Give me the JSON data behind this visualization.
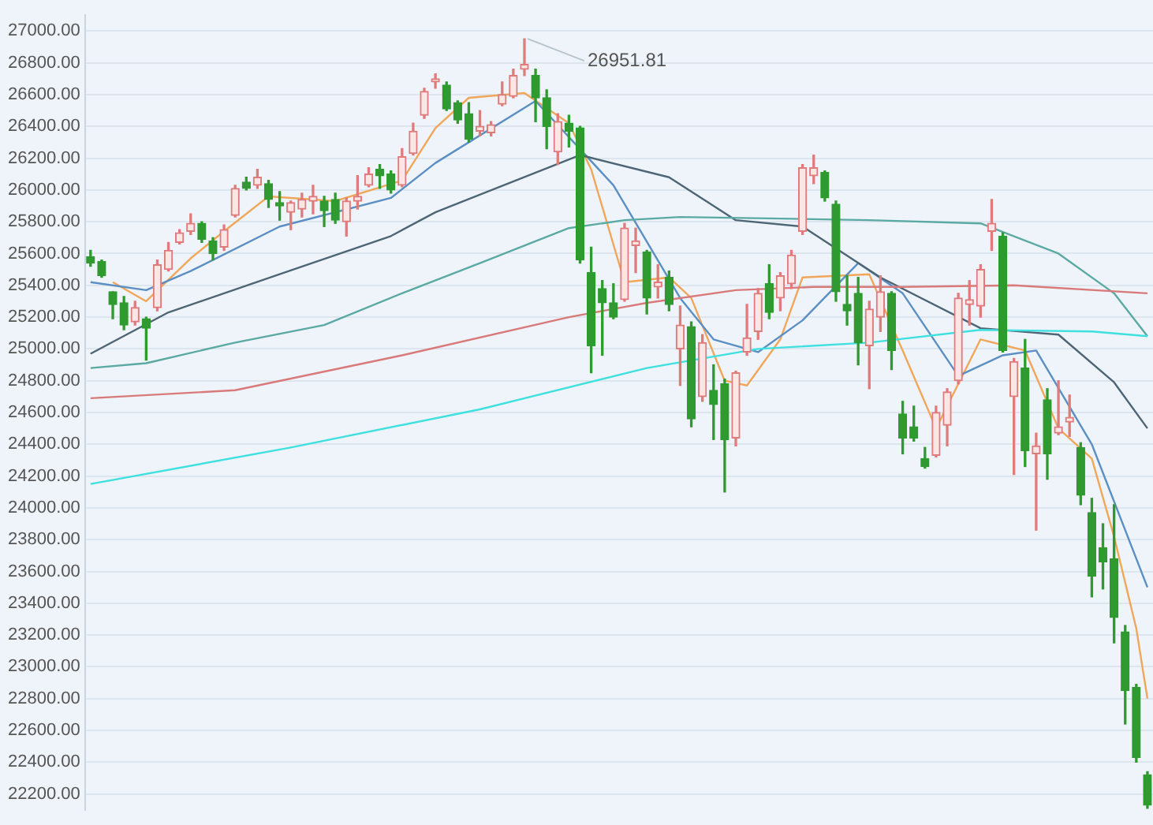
{
  "chart_data": {
    "type": "candlestick",
    "categories": [
      null,
      null,
      null,
      null,
      null,
      null,
      null,
      null,
      null,
      null,
      null,
      null,
      null,
      null,
      null,
      null,
      null,
      null,
      null,
      null,
      null,
      null,
      null,
      null,
      null,
      null,
      null,
      null,
      null,
      null,
      null,
      null,
      null,
      null,
      null,
      null,
      null,
      null,
      null,
      null,
      null,
      null,
      null,
      null,
      null,
      null,
      null,
      null,
      null,
      null,
      null,
      null,
      null,
      null,
      null,
      null,
      null,
      null,
      null,
      null,
      null,
      null,
      null,
      null,
      null,
      null,
      null,
      null,
      null,
      null,
      null,
      null,
      null,
      null,
      null,
      null,
      null,
      null,
      null,
      null,
      null,
      null,
      null,
      null,
      null,
      null,
      null,
      null,
      null,
      null,
      null,
      null,
      null,
      null,
      null,
      null
    ],
    "ohlc": [
      [
        25580,
        25620,
        25520,
        25540
      ],
      [
        25550,
        25560,
        25450,
        25460
      ],
      [
        25360,
        25360,
        25190,
        25280
      ],
      [
        25290,
        25330,
        25120,
        25150
      ],
      [
        25170,
        25300,
        25150,
        25260
      ],
      [
        25190,
        25200,
        24930,
        25130
      ],
      [
        25260,
        25560,
        25240,
        25530
      ],
      [
        25500,
        25670,
        25490,
        25620
      ],
      [
        25670,
        25750,
        25660,
        25730
      ],
      [
        25740,
        25850,
        25720,
        25790
      ],
      [
        25790,
        25800,
        25670,
        25690
      ],
      [
        25680,
        25700,
        25560,
        25600
      ],
      [
        25640,
        25780,
        25620,
        25750
      ],
      [
        25840,
        26030,
        25830,
        26010
      ],
      [
        26050,
        26080,
        26000,
        26010
      ],
      [
        26030,
        26130,
        26010,
        26080
      ],
      [
        26040,
        26060,
        25890,
        25940
      ],
      [
        25920,
        25990,
        25810,
        25900
      ],
      [
        25860,
        25930,
        25750,
        25920
      ],
      [
        25880,
        25980,
        25830,
        25940
      ],
      [
        25930,
        26030,
        25850,
        25960
      ],
      [
        25930,
        25960,
        25770,
        25870
      ],
      [
        25940,
        25980,
        25790,
        25810
      ],
      [
        25800,
        25950,
        25710,
        25930
      ],
      [
        25930,
        26090,
        25880,
        25960
      ],
      [
        26030,
        26140,
        26020,
        26100
      ],
      [
        26130,
        26160,
        26010,
        26090
      ],
      [
        26100,
        26120,
        25980,
        26000
      ],
      [
        26030,
        26260,
        26020,
        26210
      ],
      [
        26230,
        26420,
        26220,
        26370
      ],
      [
        26470,
        26640,
        26450,
        26620
      ],
      [
        26680,
        26730,
        26640,
        26700
      ],
      [
        26660,
        26680,
        26500,
        26510
      ],
      [
        26550,
        26560,
        26420,
        26440
      ],
      [
        26480,
        26550,
        26300,
        26320
      ],
      [
        26370,
        26500,
        26340,
        26400
      ],
      [
        26360,
        26430,
        26340,
        26410
      ],
      [
        26540,
        26680,
        26530,
        26600
      ],
      [
        26590,
        26760,
        26580,
        26720
      ],
      [
        26760,
        26951.81,
        26720,
        26790
      ],
      [
        26720,
        26760,
        26430,
        26580
      ],
      [
        26580,
        26630,
        26260,
        26400
      ],
      [
        26240,
        26480,
        26160,
        26430
      ],
      [
        26420,
        26470,
        26270,
        26370
      ],
      [
        26390,
        26400,
        25540,
        25560
      ],
      [
        25480,
        25640,
        24850,
        25020
      ],
      [
        25380,
        25430,
        24960,
        25290
      ],
      [
        25290,
        25410,
        25190,
        25200
      ],
      [
        25310,
        25790,
        25300,
        25760
      ],
      [
        25650,
        25760,
        25480,
        25680
      ],
      [
        25610,
        25620,
        25220,
        25320
      ],
      [
        25390,
        25530,
        25320,
        25420
      ],
      [
        25450,
        25490,
        25240,
        25280
      ],
      [
        25000,
        25270,
        24770,
        25150
      ],
      [
        25140,
        25170,
        24510,
        24560
      ],
      [
        24700,
        25090,
        24670,
        25040
      ],
      [
        24740,
        24900,
        24430,
        24650
      ],
      [
        24780,
        24810,
        24100,
        24430
      ],
      [
        24440,
        24860,
        24390,
        24850
      ],
      [
        24980,
        25280,
        24960,
        25070
      ],
      [
        25110,
        25380,
        25060,
        25350
      ],
      [
        25410,
        25530,
        25190,
        25230
      ],
      [
        25320,
        25480,
        25240,
        25460
      ],
      [
        25410,
        25620,
        25380,
        25590
      ],
      [
        25740,
        26160,
        25720,
        26140
      ],
      [
        26090,
        26220,
        26040,
        26140
      ],
      [
        26110,
        26120,
        25930,
        25950
      ],
      [
        25910,
        25930,
        25300,
        25360
      ],
      [
        25280,
        25460,
        25150,
        25240
      ],
      [
        25350,
        25450,
        24900,
        25040
      ],
      [
        25020,
        25300,
        24750,
        25250
      ],
      [
        25200,
        25460,
        25110,
        25360
      ],
      [
        25350,
        25360,
        24870,
        24990
      ],
      [
        24590,
        24670,
        24340,
        24440
      ],
      [
        24510,
        24640,
        24420,
        24440
      ],
      [
        24310,
        24380,
        24250,
        24260
      ],
      [
        24330,
        24640,
        24320,
        24600
      ],
      [
        24520,
        24750,
        24390,
        24730
      ],
      [
        24800,
        25350,
        24780,
        25320
      ],
      [
        25280,
        25430,
        25150,
        25310
      ],
      [
        25270,
        25530,
        25200,
        25500
      ],
      [
        25740,
        25940,
        25620,
        25790
      ],
      [
        25710,
        25730,
        24980,
        24990
      ],
      [
        24700,
        24940,
        24210,
        24920
      ],
      [
        24880,
        25060,
        24260,
        24360
      ],
      [
        24340,
        24470,
        23860,
        24390
      ],
      [
        24680,
        24750,
        24180,
        24340
      ],
      [
        24470,
        24800,
        24460,
        24510
      ],
      [
        24540,
        24710,
        24450,
        24570
      ],
      [
        24380,
        24410,
        24020,
        24080
      ],
      [
        23970,
        24060,
        23440,
        23570
      ],
      [
        23750,
        23900,
        23490,
        23660
      ],
      [
        23680,
        24020,
        23150,
        23310
      ],
      [
        23220,
        23260,
        22640,
        22850
      ],
      [
        22870,
        22890,
        22400,
        22430
      ],
      [
        22320,
        22340,
        22110,
        22130
      ]
    ],
    "series": [
      {
        "type": "line",
        "color": "#3fe0e0",
        "values": [
          24150,
          null,
          null,
          null,
          null,
          null,
          null,
          null,
          null,
          null,
          null,
          null,
          null,
          null,
          null,
          null,
          null,
          null,
          24380,
          null,
          null,
          null,
          null,
          null,
          null,
          null,
          null,
          null,
          null,
          null,
          null,
          null,
          null,
          null,
          null,
          24620,
          null,
          null,
          null,
          null,
          null,
          null,
          null,
          null,
          null,
          null,
          null,
          null,
          null,
          null,
          24880,
          null,
          null,
          null,
          null,
          null,
          null,
          null,
          null,
          null,
          25000,
          null,
          null,
          null,
          null,
          null,
          null,
          null,
          null,
          null,
          25040,
          null,
          null,
          null,
          null,
          null,
          null,
          null,
          null,
          null,
          25120,
          null,
          null,
          null,
          null,
          null,
          null,
          null,
          null,
          null,
          25110,
          null,
          null,
          null,
          null,
          25080
        ]
      },
      {
        "type": "line",
        "color": "#d97a7a",
        "values": [
          24690,
          null,
          null,
          null,
          null,
          null,
          null,
          null,
          null,
          null,
          null,
          null,
          null,
          24740,
          null,
          null,
          null,
          null,
          null,
          null,
          null,
          null,
          null,
          null,
          null,
          null,
          null,
          null,
          24960,
          null,
          null,
          null,
          null,
          null,
          null,
          null,
          null,
          null,
          null,
          null,
          null,
          null,
          null,
          25200,
          null,
          null,
          null,
          null,
          null,
          null,
          25290,
          null,
          null,
          null,
          null,
          null,
          null,
          null,
          25370,
          null,
          null,
          null,
          null,
          null,
          null,
          25390,
          null,
          null,
          null,
          null,
          null,
          null,
          null,
          25390,
          null,
          null,
          null,
          null,
          null,
          null,
          null,
          null,
          null,
          25400,
          null,
          null,
          null,
          null,
          null,
          null,
          null,
          null,
          null,
          null,
          null,
          25350
        ]
      },
      {
        "type": "line",
        "color": "#5aa9a2",
        "values": [
          24880,
          null,
          null,
          null,
          null,
          24910,
          null,
          null,
          null,
          null,
          null,
          null,
          null,
          25040,
          null,
          null,
          null,
          null,
          null,
          null,
          null,
          25150,
          null,
          null,
          null,
          null,
          null,
          null,
          25350,
          null,
          null,
          null,
          null,
          null,
          null,
          25540,
          null,
          null,
          null,
          null,
          null,
          null,
          null,
          25760,
          null,
          null,
          null,
          null,
          25810,
          null,
          null,
          null,
          null,
          25830,
          null,
          null,
          null,
          null,
          null,
          null,
          null,
          null,
          25820,
          null,
          null,
          null,
          null,
          null,
          null,
          null,
          25810,
          null,
          null,
          null,
          null,
          null,
          null,
          null,
          null,
          null,
          25790,
          null,
          null,
          null,
          null,
          null,
          null,
          25600,
          null,
          null,
          null,
          null,
          25350,
          null,
          null,
          25080
        ]
      },
      {
        "type": "line",
        "color": "#4d6574",
        "values": [
          24970,
          null,
          null,
          null,
          null,
          null,
          null,
          25230,
          null,
          null,
          null,
          null,
          null,
          null,
          null,
          null,
          null,
          25470,
          null,
          null,
          null,
          null,
          null,
          null,
          null,
          null,
          null,
          25710,
          null,
          null,
          null,
          25860,
          null,
          null,
          null,
          null,
          null,
          null,
          null,
          null,
          null,
          null,
          null,
          null,
          26220,
          null,
          null,
          null,
          null,
          null,
          null,
          null,
          26080,
          null,
          null,
          null,
          null,
          null,
          25810,
          null,
          null,
          null,
          null,
          null,
          25770,
          null,
          null,
          null,
          null,
          null,
          null,
          25450,
          null,
          null,
          null,
          null,
          null,
          null,
          null,
          null,
          25130,
          null,
          null,
          null,
          null,
          null,
          null,
          25090,
          null,
          null,
          null,
          null,
          24790,
          null,
          null,
          24500
        ]
      },
      {
        "type": "line",
        "color": "#5b8fc4",
        "values": [
          25420,
          null,
          null,
          null,
          null,
          25370,
          null,
          null,
          null,
          25490,
          null,
          null,
          null,
          null,
          null,
          null,
          null,
          25770,
          null,
          null,
          null,
          null,
          null,
          null,
          null,
          null,
          null,
          25950,
          null,
          null,
          null,
          26170,
          null,
          null,
          null,
          null,
          null,
          null,
          null,
          null,
          26560,
          null,
          null,
          null,
          null,
          null,
          null,
          26030,
          null,
          null,
          null,
          null,
          null,
          25320,
          null,
          null,
          25060,
          null,
          null,
          null,
          24980,
          null,
          null,
          null,
          25180,
          null,
          null,
          null,
          null,
          25540,
          null,
          null,
          null,
          25350,
          null,
          null,
          null,
          null,
          24830,
          null,
          null,
          null,
          24960,
          null,
          null,
          24990,
          null,
          null,
          null,
          null,
          24400,
          null,
          null,
          null,
          null,
          23500
        ]
      },
      {
        "type": "line",
        "color": "#f0a75a",
        "values": [
          null,
          null,
          25420,
          null,
          null,
          25300,
          null,
          null,
          null,
          25570,
          null,
          null,
          25740,
          null,
          null,
          null,
          25960,
          null,
          null,
          null,
          null,
          null,
          25930,
          null,
          null,
          null,
          null,
          null,
          26060,
          null,
          null,
          26390,
          null,
          null,
          26580,
          null,
          null,
          null,
          null,
          26610,
          null,
          null,
          null,
          26420,
          null,
          26130,
          null,
          null,
          25420,
          null,
          null,
          null,
          25450,
          null,
          25320,
          null,
          null,
          24800,
          null,
          24770,
          null,
          null,
          25060,
          null,
          25450,
          null,
          null,
          null,
          null,
          null,
          25470,
          null,
          null,
          24990,
          null,
          null,
          24500,
          null,
          null,
          null,
          25060,
          null,
          null,
          null,
          24990,
          null,
          null,
          24500,
          null,
          null,
          24310,
          null,
          23820,
          null,
          23240,
          22800
        ]
      }
    ],
    "ylim": [
      22100,
      27100
    ],
    "yticks": [
      {
        "value": 22200,
        "label": "22200.00"
      },
      {
        "value": 22400,
        "label": "22400.00"
      },
      {
        "value": 22600,
        "label": "22600.00"
      },
      {
        "value": 22800,
        "label": "22800.00"
      },
      {
        "value": 23000,
        "label": "23000.00"
      },
      {
        "value": 23200,
        "label": "23200.00"
      },
      {
        "value": 23400,
        "label": "23400.00"
      },
      {
        "value": 23600,
        "label": "23600.00"
      },
      {
        "value": 23800,
        "label": "23800.00"
      },
      {
        "value": 24000,
        "label": "24000.00"
      },
      {
        "value": 24200,
        "label": "24200.00"
      },
      {
        "value": 24400,
        "label": "24400.00"
      },
      {
        "value": 24600,
        "label": "24600.00"
      },
      {
        "value": 24800,
        "label": "24800.00"
      },
      {
        "value": 25000,
        "label": "25000.00"
      },
      {
        "value": 25200,
        "label": "25200.00"
      },
      {
        "value": 25400,
        "label": "25400.00"
      },
      {
        "value": 25600,
        "label": "25600.00"
      },
      {
        "value": 25800,
        "label": "25800.00"
      },
      {
        "value": 26000,
        "label": "26000.00"
      },
      {
        "value": 26200,
        "label": "26200.00"
      },
      {
        "value": 26400,
        "label": "26400.00"
      },
      {
        "value": 26600,
        "label": "26600.00"
      },
      {
        "value": 26800,
        "label": "26800.00"
      },
      {
        "value": 27000,
        "label": "27000.00"
      }
    ],
    "grid": "y",
    "tick_labels": "y",
    "annotations": [
      "26951.81"
    ]
  }
}
